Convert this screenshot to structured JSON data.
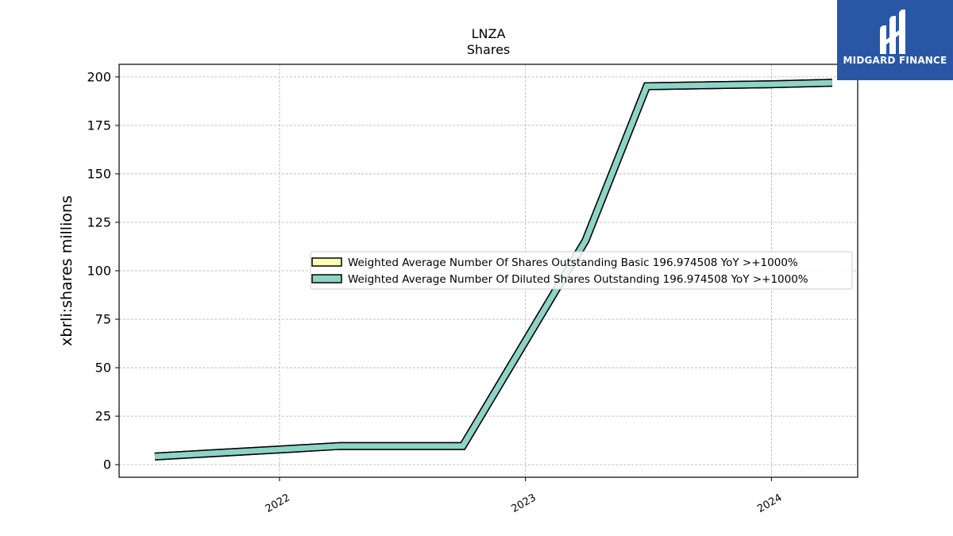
{
  "chart_data": {
    "type": "line",
    "title": "LNZA",
    "subtitle": "Shares",
    "ylabel": "xbrli:shares millions",
    "xlabel": "",
    "ylim": [
      -6.5,
      206.5
    ],
    "xlim": [
      "2021-05-08",
      "2024-05-08"
    ],
    "yticks": [
      0,
      25,
      50,
      75,
      100,
      125,
      150,
      175,
      200
    ],
    "xticks": [
      "2022-01-01",
      "2023-01-01",
      "2024-01-01"
    ],
    "xtick_labels": [
      "2022",
      "2023",
      "2024"
    ],
    "grid": true,
    "legend_position": "center-right",
    "series": [
      {
        "name": "Weighted Average Number Of Shares Outstanding Basic  196.974508 YoY >+1000%",
        "color": "#ffffb3",
        "x": [
          "2021-06-30",
          "2021-12-31",
          "2022-03-31",
          "2022-09-30",
          "2023-03-31",
          "2023-06-30",
          "2023-12-31",
          "2024-03-31"
        ],
        "y": [
          4.2,
          7.8,
          9.6,
          9.6,
          115.5,
          195.2,
          196.2,
          196.974508
        ]
      },
      {
        "name": "Weighted Average Number Of Diluted Shares Outstanding  196.974508 YoY >+1000%",
        "color": "#8dd3c7",
        "x": [
          "2021-06-30",
          "2021-12-31",
          "2022-03-31",
          "2022-09-30",
          "2023-03-31",
          "2023-06-30",
          "2023-12-31",
          "2024-03-31"
        ],
        "y": [
          4.2,
          7.8,
          9.6,
          9.6,
          115.5,
          195.2,
          196.2,
          196.974508
        ]
      }
    ]
  },
  "logo": {
    "name": "MIDGARD FINANCE",
    "background": "#2a56a6",
    "icon": "midgard-logo-icon"
  }
}
